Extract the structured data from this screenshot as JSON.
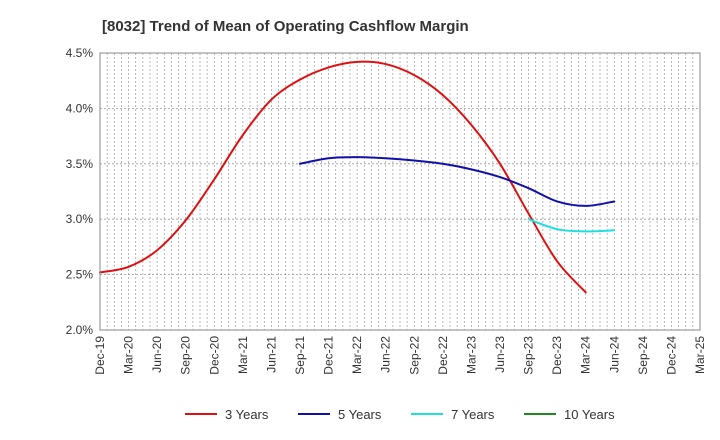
{
  "chart_data": {
    "type": "line",
    "title": "[8032]  Trend of Mean of Operating Cashflow Margin",
    "xlabel": "",
    "ylabel": "",
    "ylim": [
      2.0,
      4.5
    ],
    "yticks": [
      2.0,
      2.5,
      3.0,
      3.5,
      4.0,
      4.5
    ],
    "ytick_labels": [
      "2.0%",
      "2.5%",
      "3.0%",
      "3.5%",
      "4.0%",
      "4.5%"
    ],
    "x_tick_labels": [
      "Dec-19",
      "Mar-20",
      "Jun-20",
      "Sep-20",
      "Dec-20",
      "Mar-21",
      "Jun-21",
      "Sep-21",
      "Dec-21",
      "Mar-22",
      "Jun-22",
      "Sep-22",
      "Dec-22",
      "Mar-23",
      "Jun-23",
      "Sep-23",
      "Dec-23",
      "Mar-24",
      "Jun-24",
      "Sep-24",
      "Dec-24",
      "Mar-25"
    ],
    "grid": true,
    "legend_position": "bottom",
    "series": [
      {
        "name": "3 Years",
        "color": "#dd1111",
        "start_index": 0,
        "values": [
          2.52,
          2.57,
          2.72,
          2.99,
          3.36,
          3.76,
          4.08,
          4.26,
          4.37,
          4.42,
          4.4,
          4.3,
          4.12,
          3.85,
          3.5,
          3.05,
          2.62,
          2.34
        ]
      },
      {
        "name": "5 Years",
        "color": "#1111aa",
        "start_index": 7,
        "values": [
          3.5,
          3.55,
          3.56,
          3.55,
          3.53,
          3.5,
          3.45,
          3.38,
          3.28,
          3.16,
          3.12,
          3.16
        ]
      },
      {
        "name": "7 Years",
        "color": "#22dddd",
        "start_index": 15,
        "values": [
          3.0,
          2.91,
          2.89,
          2.9
        ]
      },
      {
        "name": "10 Years",
        "color": "#228822",
        "start_index": 0,
        "values": []
      }
    ]
  }
}
